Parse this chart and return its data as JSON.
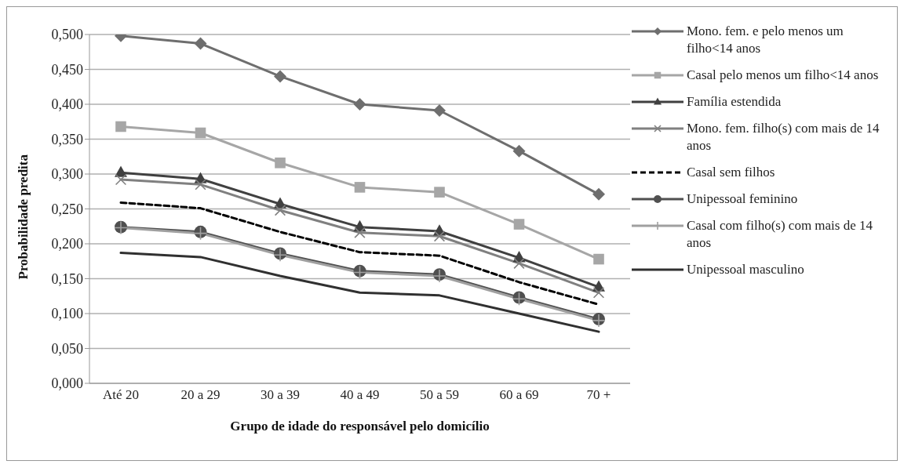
{
  "chart_data": {
    "type": "line",
    "xlabel": "Grupo de idade do responsável pelo domicílio",
    "ylabel": "Probabilidade predita",
    "categories": [
      "Até 20",
      "20 a 29",
      "30 a 39",
      "40 a 49",
      "50 a 59",
      "60 a 69",
      "70 +"
    ],
    "ylim": [
      0,
      0.5
    ],
    "yticks": [
      {
        "value": 0,
        "label": "0,000"
      },
      {
        "value": 0.05,
        "label": "0,050"
      },
      {
        "value": 0.1,
        "label": "0,100"
      },
      {
        "value": 0.15,
        "label": "0,150"
      },
      {
        "value": 0.2,
        "label": "0,200"
      },
      {
        "value": 0.25,
        "label": "0,250"
      },
      {
        "value": 0.3,
        "label": "0,300"
      },
      {
        "value": 0.35,
        "label": "0,350"
      },
      {
        "value": 0.4,
        "label": "0,400"
      },
      {
        "value": 0.45,
        "label": "0,450"
      },
      {
        "value": 0.5,
        "label": "0,500"
      }
    ],
    "grid": "y",
    "legend": "right",
    "series": [
      {
        "name": "Mono. fem. e pelo menos um filho<14 anos",
        "color": "#6e6e6e",
        "marker": "diamond",
        "line_style": "solid",
        "values": [
          0.498,
          0.487,
          0.44,
          0.4,
          0.391,
          0.333,
          0.271
        ]
      },
      {
        "name": "Casal pelo menos um filho<14 anos",
        "color": "#a6a6a6",
        "marker": "square",
        "line_style": "solid",
        "values": [
          0.368,
          0.359,
          0.316,
          0.281,
          0.274,
          0.228,
          0.178
        ]
      },
      {
        "name": "Família estendida",
        "color": "#404040",
        "marker": "triangle",
        "line_style": "solid",
        "values": [
          0.302,
          0.293,
          0.257,
          0.224,
          0.218,
          0.18,
          0.138
        ]
      },
      {
        "name": "Mono. fem. filho(s) com mais de 14 anos",
        "color": "#808080",
        "marker": "cross",
        "line_style": "solid",
        "values": [
          0.292,
          0.285,
          0.248,
          0.216,
          0.211,
          0.172,
          0.13
        ]
      },
      {
        "name": "Casal sem filhos",
        "color": "#000000",
        "marker": "none",
        "line_style": "dashed",
        "values": [
          0.259,
          0.251,
          0.217,
          0.188,
          0.183,
          0.145,
          0.113
        ]
      },
      {
        "name": "Unipessoal feminino",
        "color": "#505050",
        "marker": "circle",
        "line_style": "solid",
        "values": [
          0.224,
          0.217,
          0.186,
          0.161,
          0.156,
          0.123,
          0.092
        ]
      },
      {
        "name": "Casal com filho(s) com mais de 14 anos",
        "color": "#a0a0a0",
        "marker": "plus",
        "line_style": "solid",
        "values": [
          0.223,
          0.215,
          0.184,
          0.159,
          0.154,
          0.121,
          0.09
        ]
      },
      {
        "name": "Unipessoal masculino",
        "color": "#303030",
        "marker": "none",
        "line_style": "solid",
        "values": [
          0.187,
          0.181,
          0.154,
          0.13,
          0.126,
          0.1,
          0.074
        ]
      }
    ]
  }
}
